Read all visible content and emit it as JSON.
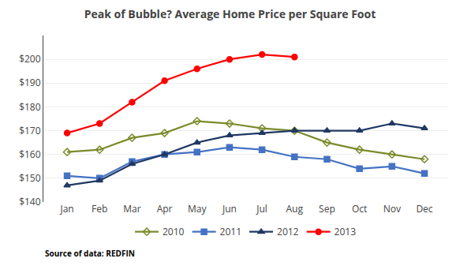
{
  "chart_data": {
    "type": "line",
    "title": "Peak of Bubble? Average Home Price per Square Foot",
    "annotations": [
      "Source of data: REDFIN"
    ],
    "categories": [
      "Jan",
      "Feb",
      "Mar",
      "Apr",
      "May",
      "Jun",
      "Jul",
      "Aug",
      "Sep",
      "Oct",
      "Nov",
      "Dec"
    ],
    "series": [
      {
        "name": "2010",
        "color": "#7b8b2a",
        "marker": "diamond-open",
        "values": [
          161,
          162,
          167,
          169,
          174,
          173,
          171,
          170,
          165,
          162,
          160,
          158
        ]
      },
      {
        "name": "2011",
        "color": "#4472c4",
        "marker": "square",
        "values": [
          151,
          150,
          157,
          160,
          161,
          163,
          162,
          159,
          158,
          154,
          155,
          152
        ]
      },
      {
        "name": "2012",
        "color": "#203864",
        "marker": "triangle-up",
        "values": [
          147,
          149,
          156,
          160,
          165,
          168,
          169,
          170,
          170,
          170,
          173,
          171
        ]
      },
      {
        "name": "2013",
        "color": "#ff0000",
        "marker": "circle",
        "values": [
          169,
          173,
          182,
          191,
          196,
          200,
          202,
          201,
          null,
          null,
          null,
          null
        ]
      }
    ],
    "ylim": [
      140,
      210
    ],
    "yticks": [
      {
        "value": 140,
        "label": "$140"
      },
      {
        "value": 150,
        "label": "$150"
      },
      {
        "value": 160,
        "label": "$160"
      },
      {
        "value": 170,
        "label": "$170"
      },
      {
        "value": 180,
        "label": "$180"
      },
      {
        "value": 190,
        "label": "$190"
      },
      {
        "value": 200,
        "label": "$200"
      }
    ],
    "grid": true,
    "legend": "bottom"
  }
}
